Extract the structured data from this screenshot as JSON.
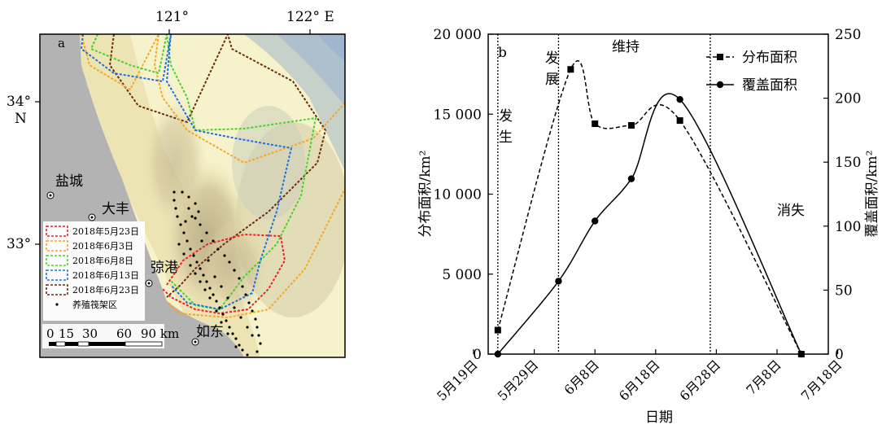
{
  "panel_a": {
    "label": "a",
    "lon_ticks": [
      "121°",
      "122° E"
    ],
    "lat_ticks": [
      "34°",
      "N",
      "33°"
    ],
    "cities": [
      "盐城",
      "大丰",
      "弶港",
      "如东"
    ],
    "scale_labels": [
      "0",
      "15",
      "30",
      "60",
      "90 km"
    ],
    "legend": [
      {
        "label": "2018年5月23日",
        "color": "#e8232a"
      },
      {
        "label": "2018年6月3日",
        "color": "#f5a623"
      },
      {
        "label": "2018年6月8日",
        "color": "#49d12d"
      },
      {
        "label": "2018年6月13日",
        "color": "#1f6fe0"
      },
      {
        "label": "2018年6月23日",
        "color": "#6b2b0c"
      },
      {
        "label": "养殖筏架区",
        "color": "#000000"
      }
    ]
  },
  "chart_data": {
    "type": "line",
    "label": "b",
    "xlabel": "日期",
    "ylabel_left": "分布面积/km²",
    "ylabel_right": "覆盖面积/km²",
    "x_tick_labels": [
      "5月19日",
      "5月29日",
      "6月8日",
      "6月18日",
      "6月28日",
      "7月8日",
      "7月18日"
    ],
    "ylim_left": [
      0,
      20000
    ],
    "ylim_right": [
      0,
      250
    ],
    "y_left_tick_labels": [
      "0",
      "5 000",
      "10 000",
      "15 000",
      "20 000"
    ],
    "y_right_tick_labels": [
      "0",
      "50",
      "100",
      "150",
      "200",
      "250"
    ],
    "phases": [
      "发生",
      "发展",
      "维持",
      "消失"
    ],
    "phase_lines_day": [
      4,
      14,
      39
    ],
    "series": [
      {
        "name": "分布面积",
        "axis": "left",
        "style": "dashed",
        "marker": "square",
        "points": [
          [
            4,
            1500
          ],
          [
            16,
            17800
          ],
          [
            20,
            14400
          ],
          [
            26,
            14300
          ],
          [
            34,
            14600
          ],
          [
            54,
            0
          ]
        ]
      },
      {
        "name": "覆盖面积",
        "axis": "right",
        "style": "solid",
        "marker": "circle",
        "points": [
          [
            4,
            0
          ],
          [
            14,
            57
          ],
          [
            20,
            104
          ],
          [
            26,
            137
          ],
          [
            34,
            199
          ],
          [
            54,
            0
          ]
        ]
      }
    ],
    "legend_position": "top-right"
  }
}
